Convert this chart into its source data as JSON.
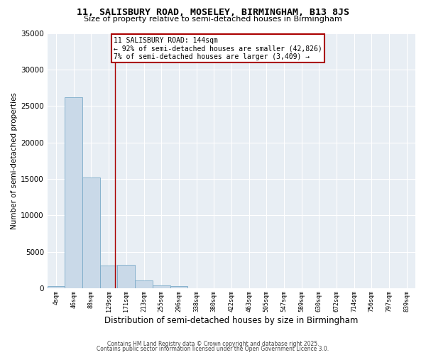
{
  "title": "11, SALISBURY ROAD, MOSELEY, BIRMINGHAM, B13 8JS",
  "subtitle": "Size of property relative to semi-detached houses in Birmingham",
  "xlabel": "Distribution of semi-detached houses by size in Birmingham",
  "ylabel": "Number of semi-detached properties",
  "bar_color": "#c9d9e8",
  "bar_edge_color": "#7aaac8",
  "bg_color": "#e8eef4",
  "grid_color": "white",
  "annotation_box_color": "#aa0000",
  "annotation_text": "11 SALISBURY ROAD: 144sqm\n← 92% of semi-detached houses are smaller (42,826)\n7% of semi-detached houses are larger (3,409) →",
  "vline_color": "#aa0000",
  "categories": [
    "4sqm",
    "46sqm",
    "88sqm",
    "129sqm",
    "171sqm",
    "213sqm",
    "255sqm",
    "296sqm",
    "338sqm",
    "380sqm",
    "422sqm",
    "463sqm",
    "505sqm",
    "547sqm",
    "589sqm",
    "630sqm",
    "672sqm",
    "714sqm",
    "756sqm",
    "797sqm",
    "839sqm"
  ],
  "values": [
    350,
    26200,
    15200,
    3100,
    3200,
    1100,
    450,
    300,
    0,
    0,
    0,
    0,
    0,
    0,
    0,
    0,
    0,
    0,
    0,
    0,
    0
  ],
  "ylim": [
    0,
    35000
  ],
  "yticks": [
    0,
    5000,
    10000,
    15000,
    20000,
    25000,
    30000,
    35000
  ],
  "footer_line1": "Contains HM Land Registry data © Crown copyright and database right 2025.",
  "footer_line2": "Contains public sector information licensed under the Open Government Licence 3.0."
}
